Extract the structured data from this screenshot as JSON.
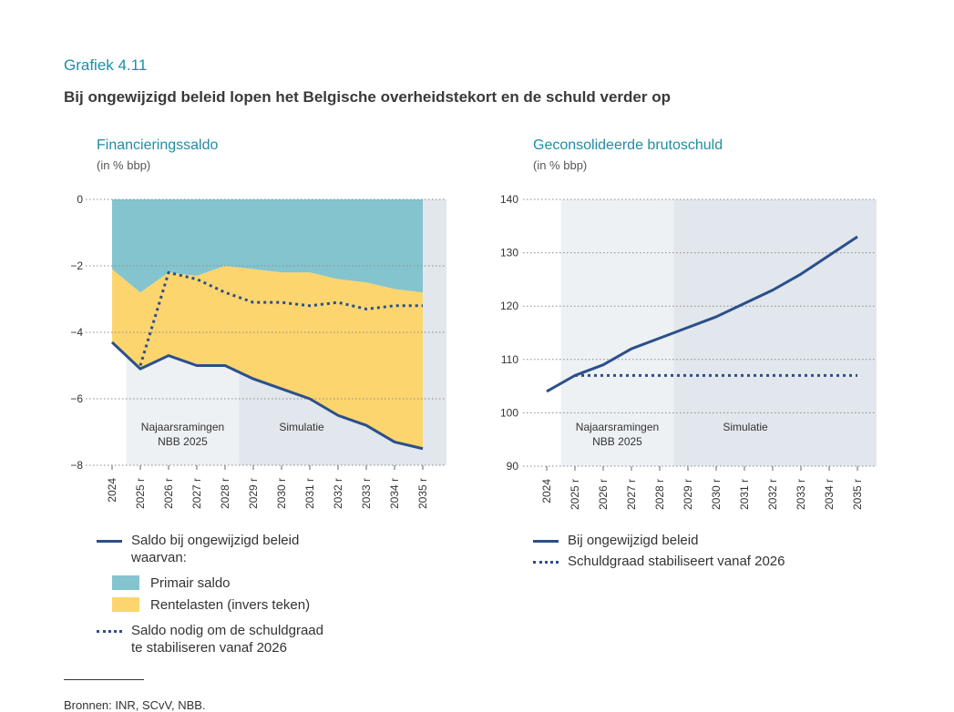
{
  "figure": {
    "label": "Grafiek 4.11",
    "title": "Bij ongewijzigd beleid lopen het Belgische overheidstekort en de schuld verder op"
  },
  "years": [
    "2024",
    "2025 r",
    "2026 r",
    "2027 r",
    "2028 r",
    "2029 r",
    "2030 r",
    "2031 r",
    "2032 r",
    "2033 r",
    "2034 r",
    "2035 r"
  ],
  "colors": {
    "primary": "#84c4cf",
    "interest": "#fcd56f",
    "line": "#2b4f8a",
    "shade_light": "#edf1f4",
    "shade_dark": "#e1e7ec"
  },
  "chart_data": [
    {
      "type": "area",
      "title": "Financieringssaldo",
      "unit": "(in % bbp)",
      "ylim": [
        -8,
        0
      ],
      "yticks": [
        0,
        -2,
        -4,
        -6,
        -8
      ],
      "ytick_labels": [
        "0",
        "−2",
        "−4",
        "−6",
        "−8"
      ],
      "categories": [
        "2024",
        "2025 r",
        "2026 r",
        "2027 r",
        "2028 r",
        "2029 r",
        "2030 r",
        "2031 r",
        "2032 r",
        "2033 r",
        "2034 r",
        "2035 r"
      ],
      "series": [
        {
          "name": "Primair saldo",
          "kind": "area",
          "values": [
            -2.1,
            -2.8,
            -2.2,
            -2.3,
            -2.0,
            -2.1,
            -2.2,
            -2.2,
            -2.4,
            -2.5,
            -2.7,
            -2.8
          ]
        },
        {
          "name": "Rentelasten (invers teken)",
          "kind": "area",
          "values": [
            -2.2,
            -2.3,
            -2.5,
            -2.7,
            -3.0,
            -3.3,
            -3.5,
            -3.8,
            -4.1,
            -4.3,
            -4.6,
            -4.7
          ]
        },
        {
          "name": "Saldo bij ongewijzigd beleid",
          "kind": "line",
          "values": [
            -4.3,
            -5.1,
            -4.7,
            -5.0,
            -5.0,
            -5.4,
            -5.7,
            -6.0,
            -6.5,
            -6.8,
            -7.3,
            -7.5
          ]
        },
        {
          "name": "Saldo nodig om de schuldgraad te stabiliseren vanaf 2026",
          "kind": "dotted",
          "start_index": 1,
          "values": [
            null,
            -5.0,
            -2.2,
            -2.4,
            -2.8,
            -3.1,
            -3.1,
            -3.2,
            -3.1,
            -3.3,
            -3.2,
            -3.2
          ]
        }
      ],
      "regions": [
        {
          "label_lines": [
            "Najaarsramingen",
            "NBB 2025"
          ],
          "from": 1,
          "to": 4
        },
        {
          "label_lines": [
            "Simulatie"
          ],
          "from": 5,
          "to": 11
        }
      ]
    },
    {
      "type": "line",
      "title": "Geconsolideerde brutoschuld",
      "unit": "(in % bbp)",
      "ylim": [
        90,
        140
      ],
      "yticks": [
        140,
        130,
        120,
        110,
        100,
        90
      ],
      "ytick_labels": [
        "140",
        "130",
        "120",
        "110",
        "100",
        "90"
      ],
      "categories": [
        "2024",
        "2025 r",
        "2026 r",
        "2027 r",
        "2028 r",
        "2029 r",
        "2030 r",
        "2031 r",
        "2032 r",
        "2033 r",
        "2034 r",
        "2035 r"
      ],
      "series": [
        {
          "name": "Bij ongewijzigd beleid",
          "kind": "line",
          "values": [
            104,
            107,
            109,
            112,
            114,
            116,
            118,
            120.5,
            123,
            126,
            129.5,
            133
          ]
        },
        {
          "name": "Schuldgraad stabiliseert vanaf 2026",
          "kind": "dotted",
          "start_index": 1,
          "values": [
            null,
            107,
            107,
            107,
            107,
            107,
            107,
            107,
            107,
            107,
            107,
            107
          ]
        }
      ],
      "regions": [
        {
          "label_lines": [
            "Najaarsramingen",
            "NBB 2025"
          ],
          "from": 1,
          "to": 4
        },
        {
          "label_lines": [
            "Simulatie"
          ],
          "from": 5,
          "to": 11
        }
      ]
    }
  ],
  "legend_left": {
    "line": "Saldo bij ongewijzigd beleid",
    "waarvan": "waarvan:",
    "primary": "Primair saldo",
    "interest": "Rentelasten (invers teken)",
    "dotted_1": "Saldo nodig om de schuldgraad",
    "dotted_2": "te stabiliseren vanaf 2026"
  },
  "legend_right": {
    "line": "Bij ongewijzigd beleid",
    "dotted": "Schuldgraad stabiliseert vanaf 2026"
  },
  "source": "Bronnen: INR, SCvV, NBB."
}
